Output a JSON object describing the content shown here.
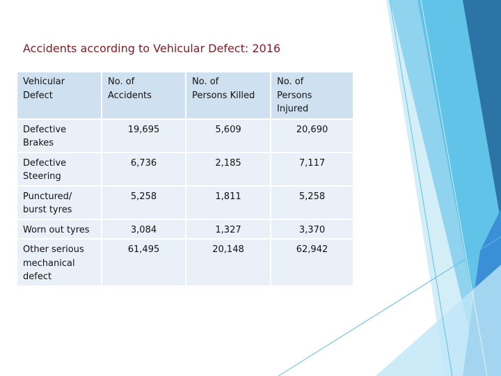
{
  "slide": {
    "title": "Accidents according to Vehicular Defect: 2016",
    "colors": {
      "title": "#8B1A26",
      "header_bg": "#cfe1f1",
      "row_bg": "#e9f0f8",
      "accent": "#2c73a6"
    }
  },
  "table": {
    "headers": [
      "Vehicular\nDefect",
      "No. of\nAccidents",
      "No. of\nPersons Killed",
      "No. of\nPersons\nInjured"
    ],
    "rows": [
      {
        "defect": "Defective\nBrakes",
        "accidents": "19,695",
        "killed": "5,609",
        "injured": "20,690"
      },
      {
        "defect": "Defective\nSteering",
        "accidents": "6,736",
        "killed": "2,185",
        "injured": "7,117"
      },
      {
        "defect": "Punctured/\nburst tyres",
        "accidents": "5,258",
        "killed": "1,811",
        "injured": "5,258"
      },
      {
        "defect": "Worn out tyres",
        "accidents": "3,084",
        "killed": "1,327",
        "injured": "3,370"
      },
      {
        "defect": "Other serious\nmechanical\ndefect",
        "accidents": "61,495",
        "killed": "20,148",
        "injured": "62,942"
      }
    ]
  }
}
